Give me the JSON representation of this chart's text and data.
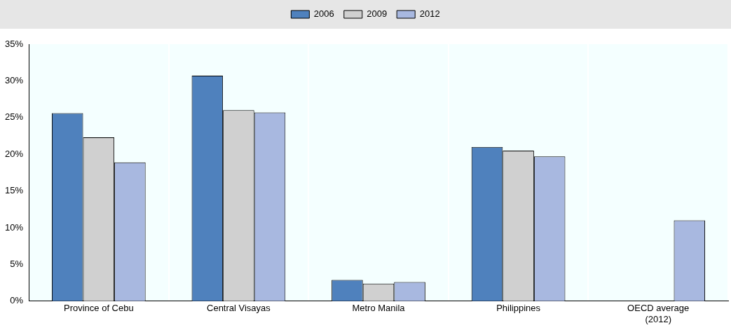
{
  "chart_data": {
    "type": "bar",
    "categories": [
      "Province of Cebu",
      "Central Visayas",
      "Metro Manila",
      "Philippines",
      "OECD average\n(2012)"
    ],
    "series": [
      {
        "name": "2006",
        "color": "#4f81bd",
        "values": [
          25.6,
          30.7,
          2.9,
          21.0,
          null
        ]
      },
      {
        "name": "2009",
        "color": "#d0d0d0",
        "values": [
          22.3,
          26.0,
          2.4,
          20.5,
          null
        ]
      },
      {
        "name": "2012",
        "color": "#a8b8e0",
        "values": [
          18.9,
          25.7,
          2.6,
          19.7,
          11.0
        ]
      }
    ],
    "ylim": [
      0,
      35
    ],
    "yticks": [
      {
        "value": 0,
        "label": "0%"
      },
      {
        "value": 5,
        "label": "5%"
      },
      {
        "value": 10,
        "label": "10%"
      },
      {
        "value": 15,
        "label": "15%"
      },
      {
        "value": 20,
        "label": "20%"
      },
      {
        "value": 25,
        "label": "25%"
      },
      {
        "value": 30,
        "label": "30%"
      },
      {
        "value": 35,
        "label": "35%"
      }
    ],
    "grid": "x",
    "legend": "top"
  }
}
